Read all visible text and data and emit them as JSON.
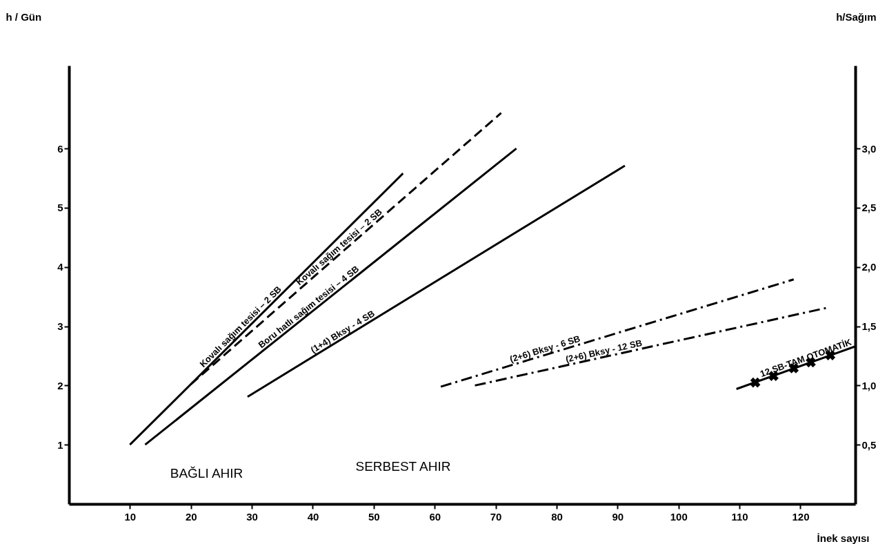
{
  "chart_data": {
    "type": "line",
    "xlabel": "İnek sayısı",
    "ylabel": "h / Gün",
    "y2label": "h/Sağım",
    "xlim": [
      0,
      129
    ],
    "xticks": [
      10,
      20,
      30,
      40,
      50,
      60,
      70,
      80,
      90,
      100,
      110,
      120
    ],
    "ylim": [
      0,
      7.4
    ],
    "yticks": [
      1,
      2,
      3,
      4,
      5,
      6
    ],
    "y2lim": [
      0,
      3.7
    ],
    "y2ticks": [
      {
        "value": 0.5,
        "label": "0,5"
      },
      {
        "value": 1,
        "label": "1,0"
      },
      {
        "value": 1.5,
        "label": "1,5"
      },
      {
        "value": 2,
        "label": "2,0"
      },
      {
        "value": 2.5,
        "label": "2,5"
      },
      {
        "value": 3,
        "label": "3,0"
      }
    ],
    "grid": false,
    "series": [
      {
        "name": "Kovalı sağım tesisi – 2 SB",
        "color": "#000000",
        "line_style": "solid",
        "x": [
          10,
          54.8
        ],
        "values": [
          1.0,
          5.58
        ]
      },
      {
        "name": "Kovalı sağım tesisi – 2 SB",
        "color": "#000000",
        "line_style": "dashed",
        "x": [
          20,
          70.9
        ],
        "values": [
          2.02,
          6.6
        ]
      },
      {
        "name": "Boru hatlı sağım tesisi – 4 SB",
        "color": "#000000",
        "line_style": "solid",
        "x": [
          12.5,
          73.4
        ],
        "values": [
          1.0,
          6.0
        ]
      },
      {
        "name": "(1+4) Bksy - 4 SB",
        "color": "#000000",
        "line_style": "solid",
        "x": [
          29.3,
          91.2
        ],
        "values": [
          1.81,
          5.71
        ]
      },
      {
        "name": "(2+6) Bksy - 6 SB",
        "color": "#000000",
        "line_style": "dashdot",
        "x": [
          61,
          118.9
        ],
        "values": [
          1.98,
          3.79
        ]
      },
      {
        "name": "(2+6) Bksy - 12 SB",
        "color": "#000000",
        "line_style": "dashdot",
        "x": [
          66.6,
          124.3
        ],
        "values": [
          2.0,
          3.31
        ]
      },
      {
        "name": "12 SB-TAM OTOMATİK",
        "color": "#000000",
        "line_style": "solid",
        "x": [
          109.5,
          129
        ],
        "values": [
          1.94,
          2.66
        ]
      },
      {
        "type": "scatter",
        "marker": "cross",
        "color": "#000000",
        "x": [
          112.6,
          115.6,
          118.9,
          121.7,
          124.9
        ],
        "values": [
          2.05,
          2.16,
          2.29,
          2.39,
          2.51
        ]
      }
    ],
    "annotations": [
      "BAĞLI AHIR",
      "SERBEST AHIR"
    ]
  }
}
